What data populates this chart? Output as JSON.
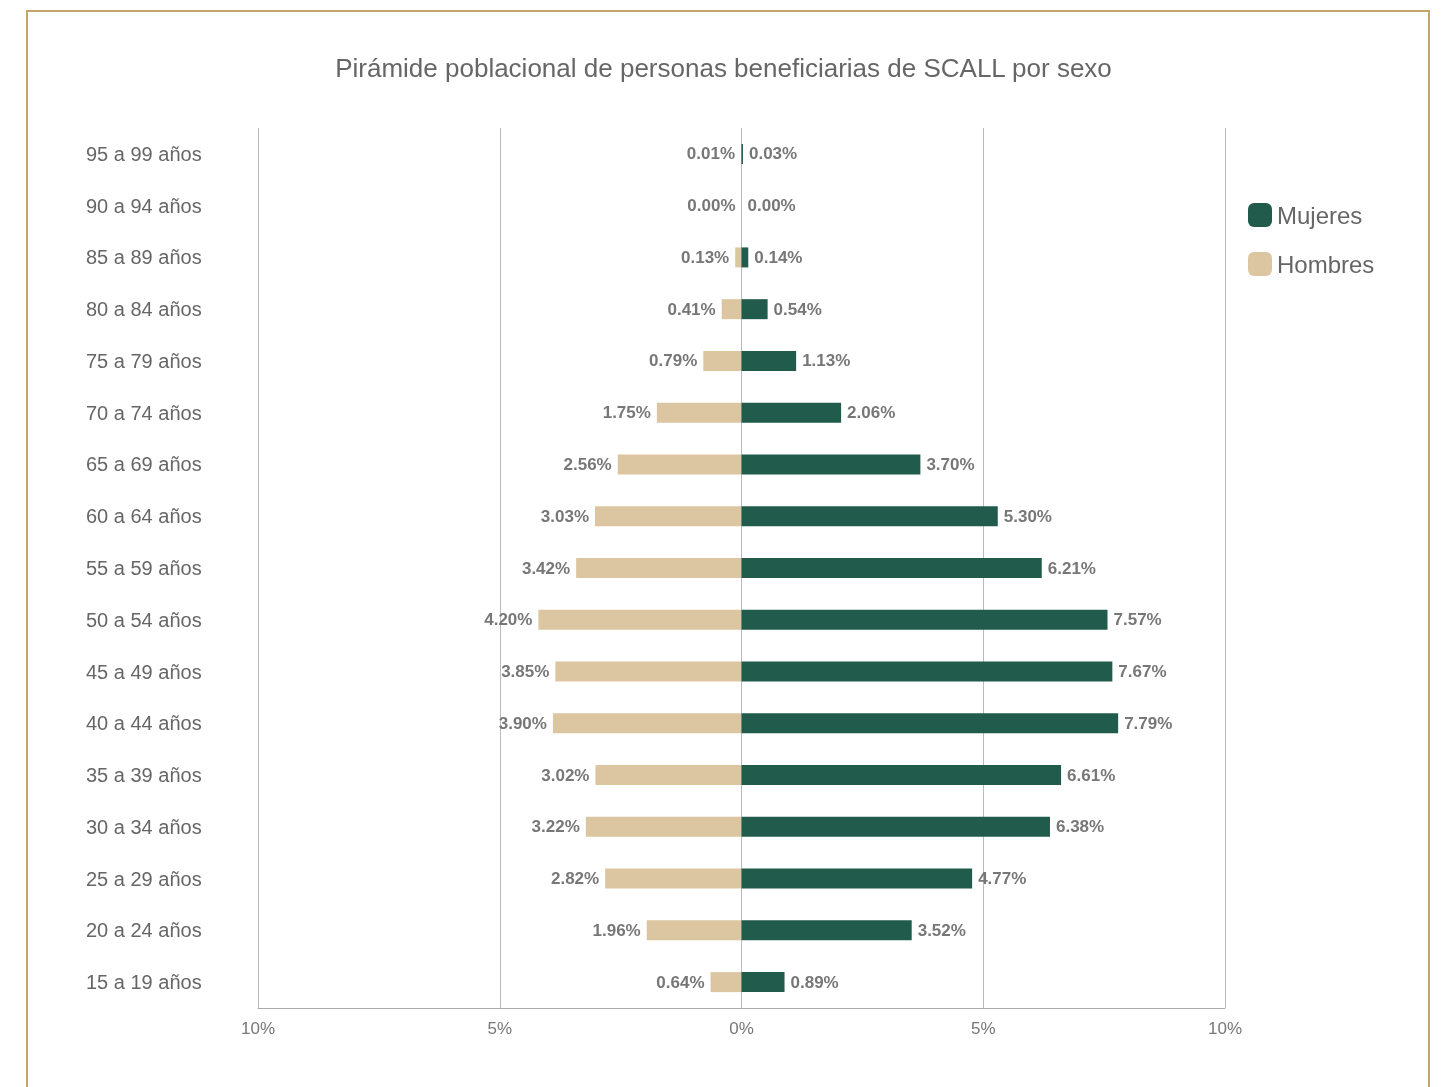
{
  "chart_data": [
    {
      "type": "bar",
      "orientation": "horizontal",
      "title": "Pirámide poblacional de personas beneficiarias de SCALL por sexo",
      "categories": [
        "95 a 99 años",
        "90 a 94 años",
        "85 a 89 años",
        "80 a 84 años",
        "75 a 79 años",
        "70 a 74 años",
        "65 a 69 años",
        "60 a 64 años",
        "55 a 59 años",
        "50 a 54 años",
        "45 a 49 años",
        "40 a 44 años",
        "35 a 39 años",
        "30 a 34 años",
        "25 a 29 años",
        "20 a 24 años",
        "15 a 19 años"
      ],
      "series": [
        {
          "name": "Hombres",
          "color": "#dbc6a1",
          "values": [
            0.01,
            0,
            0.13,
            0.41,
            0.79,
            1.75,
            2.56,
            3.03,
            3.42,
            4.2,
            3.85,
            3.9,
            3.02,
            3.22,
            2.82,
            1.96,
            0.64
          ],
          "value_labels": [
            "0.01%",
            "0.00%",
            "0.13%",
            "0.41%",
            "0.79%",
            "1.75%",
            "2.56%",
            "3.03%",
            "3.42%",
            "4.20%",
            "3.85%",
            "3.90%",
            "3.02%",
            "3.22%",
            "2.82%",
            "1.96%",
            "0.64%"
          ]
        }
      ],
      "xlim": [
        10,
        0
      ],
      "xticks": [
        {
          "value": 10,
          "label": "10%"
        },
        {
          "value": 5,
          "label": "5%"
        }
      ],
      "grid": "x",
      "legend": "right"
    },
    {
      "type": "bar",
      "orientation": "horizontal",
      "categories": [
        null,
        null,
        null,
        null,
        null,
        null,
        null,
        null,
        null,
        null,
        null,
        null,
        null,
        null,
        null,
        null,
        null
      ],
      "series": [
        {
          "name": "Mujeres",
          "color": "#215b4b",
          "values": [
            0.03,
            0,
            0.14,
            0.54,
            1.13,
            2.06,
            3.7,
            5.3,
            6.21,
            7.57,
            7.67,
            7.79,
            6.61,
            6.38,
            4.77,
            3.52,
            0.89
          ],
          "value_labels": [
            "0.03%",
            "0.00%",
            "0.14%",
            "0.54%",
            "1.13%",
            "2.06%",
            "3.70%",
            "5.30%",
            "6.21%",
            "7.57%",
            "7.67%",
            "7.79%",
            "6.61%",
            "6.38%",
            "4.77%",
            "3.52%",
            "0.89%"
          ]
        }
      ],
      "xlim": [
        0,
        10
      ],
      "xticks": [
        {
          "value": 0,
          "label": "0%"
        },
        {
          "value": 5,
          "label": "5%"
        },
        {
          "value": 10,
          "label": "10%"
        }
      ],
      "grid": "x",
      "legend": "right",
      "tick_labels": "x"
    }
  ]
}
